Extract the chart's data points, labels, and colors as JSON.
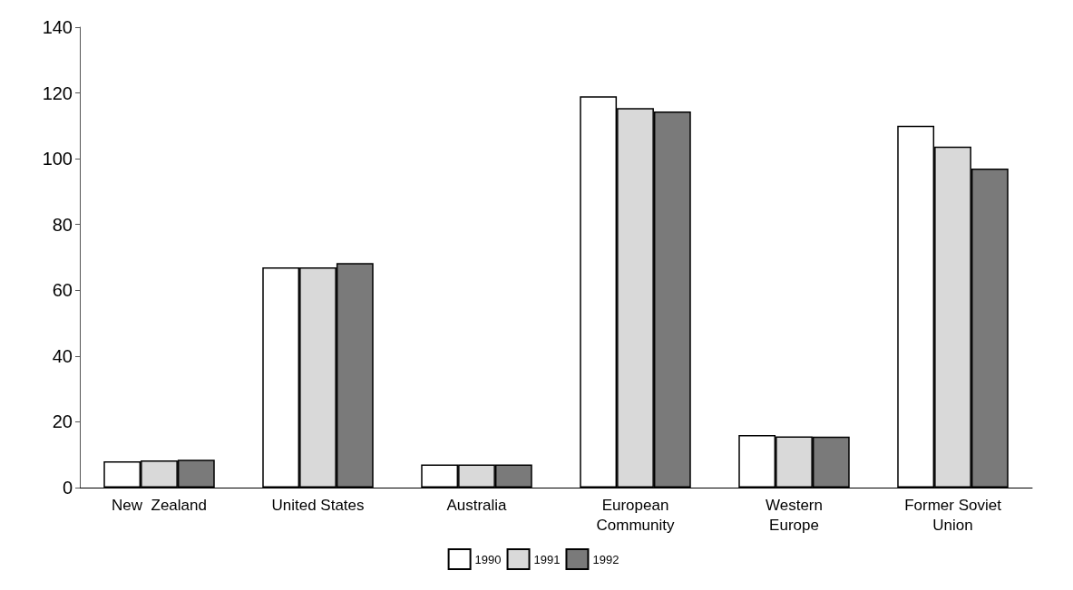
{
  "chart_data": {
    "type": "bar",
    "categories": [
      "New  Zealand",
      "United States",
      "Australia",
      "European\nCommunity",
      "Western\nEurope",
      "Former Soviet\nUnion"
    ],
    "series": [
      {
        "name": "1990",
        "color": "#ffffff",
        "values": [
          8,
          67,
          7,
          119,
          16,
          110
        ]
      },
      {
        "name": "1991",
        "color": "#d9d9d9",
        "values": [
          8.3,
          67,
          7,
          115.4,
          15.6,
          103.7
        ]
      },
      {
        "name": "1992",
        "color": "#7a7a7a",
        "values": [
          8.5,
          68.3,
          7,
          114.4,
          15.5,
          97
        ]
      }
    ],
    "ylim": [
      0,
      140
    ],
    "yticks": [
      0,
      20,
      40,
      60,
      80,
      100,
      120,
      140
    ],
    "grid": false,
    "legend": "bottom"
  }
}
